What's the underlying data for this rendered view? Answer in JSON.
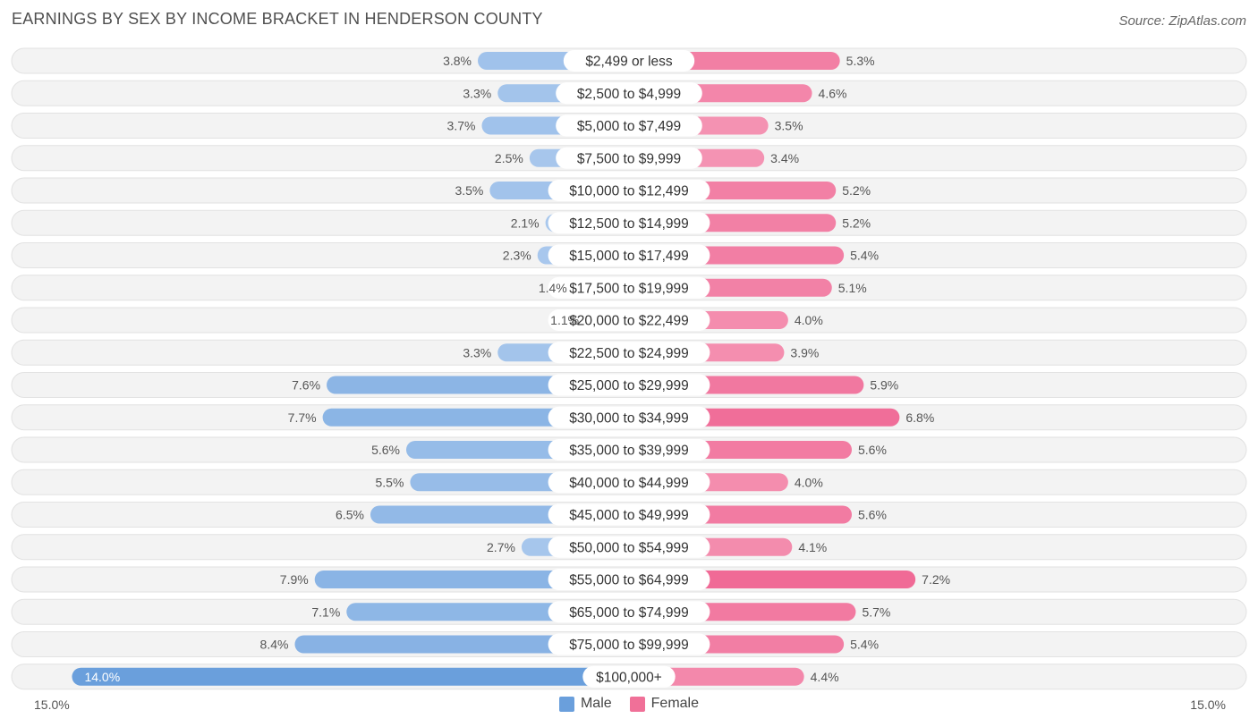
{
  "title": "EARNINGS BY SEX BY INCOME BRACKET IN HENDERSON COUNTY",
  "source": "Source: ZipAtlas.com",
  "chart_data": {
    "type": "bar",
    "orientation": "horizontal-diverging",
    "title": "EARNINGS BY SEX BY INCOME BRACKET IN HENDERSON COUNTY",
    "xlim": [
      -15.0,
      15.0
    ],
    "axis_left_label": "15.0%",
    "axis_right_label": "15.0%",
    "categories": [
      "$2,499 or less",
      "$2,500 to $4,999",
      "$5,000 to $7,499",
      "$7,500 to $9,999",
      "$10,000 to $12,499",
      "$12,500 to $14,999",
      "$15,000 to $17,499",
      "$17,500 to $19,999",
      "$20,000 to $22,499",
      "$22,500 to $24,999",
      "$25,000 to $29,999",
      "$30,000 to $34,999",
      "$35,000 to $39,999",
      "$40,000 to $44,999",
      "$45,000 to $49,999",
      "$50,000 to $54,999",
      "$55,000 to $64,999",
      "$65,000 to $74,999",
      "$75,000 to $99,999",
      "$100,000+"
    ],
    "series": [
      {
        "name": "Male",
        "color": "#7aaae0",
        "values": [
          3.8,
          3.3,
          3.7,
          2.5,
          3.5,
          2.1,
          2.3,
          1.4,
          1.1,
          3.3,
          7.6,
          7.7,
          5.6,
          5.5,
          6.5,
          2.7,
          7.9,
          7.1,
          8.4,
          14.0
        ],
        "labels": [
          "3.8%",
          "3.3%",
          "3.7%",
          "2.5%",
          "3.5%",
          "2.1%",
          "2.3%",
          "1.4%",
          "1.1%",
          "3.3%",
          "7.6%",
          "7.7%",
          "5.6%",
          "5.5%",
          "6.5%",
          "2.7%",
          "7.9%",
          "7.1%",
          "8.4%",
          "14.0%"
        ]
      },
      {
        "name": "Female",
        "color": "#f07aa0",
        "values": [
          5.3,
          4.6,
          3.5,
          3.4,
          5.2,
          5.2,
          5.4,
          5.1,
          4.0,
          3.9,
          5.9,
          6.8,
          5.6,
          4.0,
          5.6,
          4.1,
          7.2,
          5.7,
          5.4,
          4.4
        ],
        "labels": [
          "5.3%",
          "4.6%",
          "3.5%",
          "3.4%",
          "5.2%",
          "5.2%",
          "5.4%",
          "5.1%",
          "4.0%",
          "3.9%",
          "5.9%",
          "6.8%",
          "5.6%",
          "4.0%",
          "5.6%",
          "4.1%",
          "7.2%",
          "5.7%",
          "5.4%",
          "4.4%"
        ]
      }
    ],
    "legend": [
      "Male",
      "Female"
    ],
    "legend_position": "bottom-center"
  }
}
